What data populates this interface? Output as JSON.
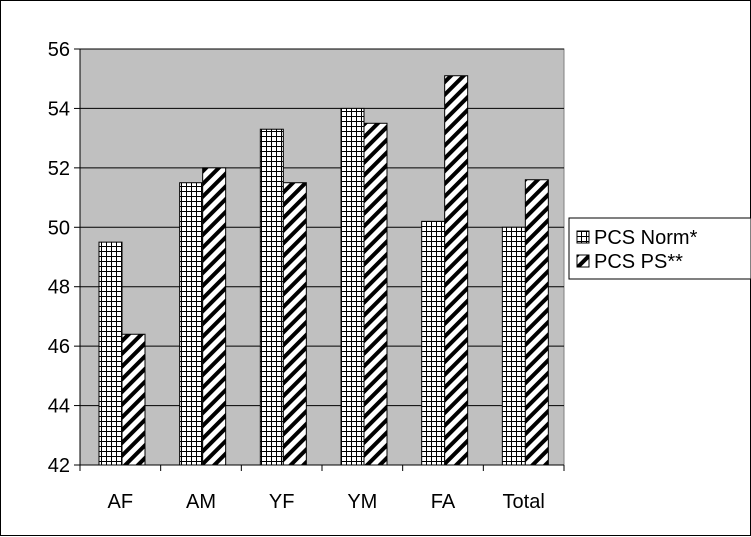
{
  "chart_data": {
    "type": "bar",
    "title": "",
    "xlabel": "",
    "ylabel": "",
    "categories": [
      "AF",
      "AM",
      "YF",
      "YM",
      "FA",
      "Total"
    ],
    "series": [
      {
        "name": "PCS Norm*",
        "pattern": "grid",
        "values": [
          49.5,
          51.5,
          53.3,
          54.0,
          50.2,
          50.0
        ]
      },
      {
        "name": "PCS PS**",
        "pattern": "diagonal",
        "values": [
          46.4,
          52.0,
          51.5,
          53.5,
          55.1,
          51.6
        ]
      }
    ],
    "ylim": [
      42,
      56
    ],
    "yticks": [
      42,
      44,
      46,
      48,
      50,
      52,
      54,
      56
    ],
    "grid": true,
    "legend_position": "right",
    "colors": {
      "plot_background": "#c0c0c0",
      "bar_fill": "#ffffff",
      "bar_stroke": "#000000",
      "gridline": "#000000"
    }
  }
}
